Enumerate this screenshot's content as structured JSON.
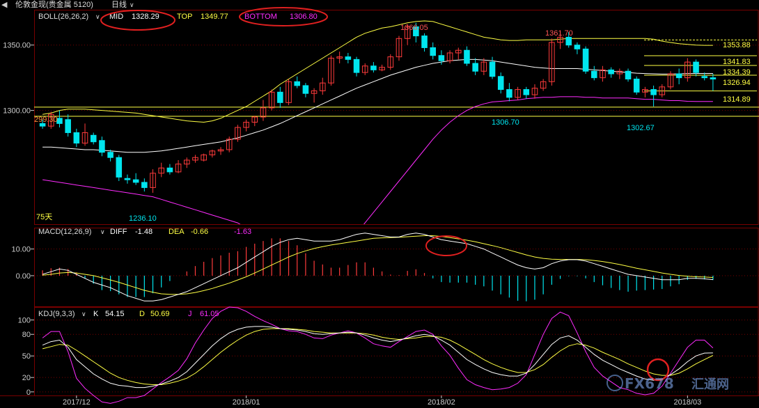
{
  "header": {
    "title": "伦敦金现(贵金属 5120)",
    "period": "日线"
  },
  "colors": {
    "bg": "#000000",
    "grid": "#7a0000",
    "up": "#ff3b3b",
    "down": "#00e5ee",
    "white": "#ffffff",
    "yellow": "#ffff44",
    "magenta": "#ff2cff",
    "axis": "#cccccc",
    "hline": "#ffff44",
    "circle": "#e02020"
  },
  "boll": {
    "label": "BOLL(26,26,2)",
    "mid_label": "MID",
    "mid": "1328.29",
    "top_label": "TOP",
    "top": "1349.77",
    "bottom_label": "BOTTOM",
    "bottom": "1306.80"
  },
  "macd": {
    "label": "MACD(12,26,9)",
    "diff_label": "DIFF",
    "diff": "-1.48",
    "dea_label": "DEA",
    "dea": "-0.66",
    "macd": "-1.63"
  },
  "kdj": {
    "label": "KDJ(9,3,3)",
    "k_label": "K",
    "k": "54.15",
    "d_label": "D",
    "d": "50.69",
    "j_label": "J",
    "j": "61.05"
  },
  "annotations": {
    "high1": "1366.05",
    "high2": "1361.70",
    "low1": "1236.10",
    "low2": "1306.70",
    "low3": "1302.67",
    "left_price": "299.30",
    "ma_days": "75天"
  },
  "levels": [
    "1353.88",
    "1341.83",
    "1334.39",
    "1326.94",
    "1314.89"
  ],
  "watermark": {
    "text": "FX678",
    "cn": "汇通网"
  },
  "chart_data": {
    "type": "candlestick",
    "x_labels": [
      "2017/12",
      "2018/01",
      "2018/02",
      "2018/03"
    ],
    "x_label_index": [
      4,
      24,
      47,
      76
    ],
    "price": {
      "ylim": [
        1213,
        1377
      ],
      "ticks": [
        1300,
        1350
      ],
      "tick_labels": [
        "1300.00",
        "1350.00"
      ],
      "horizontal_lines": [
        1302.5,
        1295.5
      ],
      "candles": [
        [
          1290,
          1293,
          1286,
          1288
        ],
        [
          1288,
          1299,
          1286,
          1297
        ],
        [
          1294,
          1300,
          1287,
          1290
        ],
        [
          1293,
          1297,
          1280,
          1283
        ],
        [
          1283,
          1286,
          1272,
          1275
        ],
        [
          1275,
          1290,
          1273,
          1283
        ],
        [
          1281,
          1283,
          1274,
          1276
        ],
        [
          1277,
          1280,
          1265,
          1268
        ],
        [
          1268,
          1270,
          1261,
          1264
        ],
        [
          1264,
          1266,
          1246,
          1249
        ],
        [
          1248,
          1251,
          1244,
          1247
        ],
        [
          1247,
          1252,
          1243,
          1245
        ],
        [
          1245,
          1248,
          1238,
          1241
        ],
        [
          1241,
          1255,
          1237,
          1252
        ],
        [
          1252,
          1260,
          1249,
          1256
        ],
        [
          1256,
          1259,
          1251,
          1253
        ],
        [
          1253,
          1262,
          1252,
          1259
        ],
        [
          1259,
          1264,
          1256,
          1262
        ],
        [
          1262,
          1266,
          1260,
          1264
        ],
        [
          1262,
          1267,
          1261,
          1266
        ],
        [
          1266,
          1270,
          1264,
          1269
        ],
        [
          1269,
          1272,
          1266,
          1270
        ],
        [
          1270,
          1280,
          1268,
          1278
        ],
        [
          1278,
          1289,
          1276,
          1287
        ],
        [
          1287,
          1293,
          1284,
          1291
        ],
        [
          1291,
          1296,
          1288,
          1295
        ],
        [
          1295,
          1308,
          1292,
          1302
        ],
        [
          1302,
          1316,
          1300,
          1314
        ],
        [
          1314,
          1318,
          1302,
          1306
        ],
        [
          1306,
          1324,
          1304,
          1322
        ],
        [
          1322,
          1326,
          1317,
          1319
        ],
        [
          1319,
          1321,
          1310,
          1313
        ],
        [
          1313,
          1317,
          1306,
          1315
        ],
        [
          1315,
          1325,
          1312,
          1321
        ],
        [
          1321,
          1342,
          1319,
          1340
        ],
        [
          1340,
          1345,
          1336,
          1341
        ],
        [
          1341,
          1344,
          1336,
          1339
        ],
        [
          1339,
          1341,
          1326,
          1329
        ],
        [
          1329,
          1336,
          1327,
          1334
        ],
        [
          1334,
          1337,
          1329,
          1331
        ],
        [
          1331,
          1335,
          1330,
          1333
        ],
        [
          1333,
          1343,
          1331,
          1341
        ],
        [
          1341,
          1357,
          1338,
          1355
        ],
        [
          1355,
          1366,
          1350,
          1364
        ],
        [
          1364,
          1367,
          1352,
          1357
        ],
        [
          1357,
          1359,
          1345,
          1348
        ],
        [
          1348,
          1352,
          1339,
          1342
        ],
        [
          1342,
          1346,
          1335,
          1338
        ],
        [
          1338,
          1346,
          1336,
          1344
        ],
        [
          1344,
          1348,
          1339,
          1346
        ],
        [
          1346,
          1349,
          1334,
          1336
        ],
        [
          1336,
          1340,
          1327,
          1330
        ],
        [
          1330,
          1340,
          1327,
          1337
        ],
        [
          1337,
          1341,
          1324,
          1326
        ],
        [
          1326,
          1329,
          1313,
          1316
        ],
        [
          1316,
          1321,
          1307,
          1310
        ],
        [
          1310,
          1318,
          1308,
          1316
        ],
        [
          1316,
          1318,
          1309,
          1312
        ],
        [
          1312,
          1320,
          1309,
          1317
        ],
        [
          1317,
          1324,
          1315,
          1322
        ],
        [
          1322,
          1355,
          1319,
          1352
        ],
        [
          1352,
          1361,
          1347,
          1356
        ],
        [
          1356,
          1360,
          1348,
          1350
        ],
        [
          1350,
          1352,
          1343,
          1347
        ],
        [
          1347,
          1349,
          1328,
          1330
        ],
        [
          1330,
          1334,
          1323,
          1325
        ],
        [
          1325,
          1334,
          1322,
          1331
        ],
        [
          1331,
          1333,
          1325,
          1328
        ],
        [
          1328,
          1332,
          1324,
          1330
        ],
        [
          1330,
          1332,
          1322,
          1324
        ],
        [
          1324,
          1326,
          1312,
          1314
        ],
        [
          1314,
          1318,
          1310,
          1316
        ],
        [
          1316,
          1319,
          1303,
          1312
        ],
        [
          1312,
          1320,
          1310,
          1318
        ],
        [
          1318,
          1330,
          1316,
          1328
        ],
        [
          1328,
          1332,
          1320,
          1325
        ],
        [
          1325,
          1340,
          1322,
          1337
        ],
        [
          1337,
          1339,
          1326,
          1329
        ],
        [
          1326,
          1329,
          1323,
          1325
        ],
        [
          1325,
          1328,
          1315,
          1324
        ]
      ],
      "mid": [
        1272,
        1272,
        1271.5,
        1271,
        1270.5,
        1270,
        1270,
        1269.5,
        1269,
        1268.5,
        1268,
        1268,
        1268,
        1268.5,
        1269,
        1270,
        1271,
        1272,
        1273,
        1274,
        1275,
        1276,
        1277.5,
        1279,
        1281,
        1283,
        1285,
        1287.5,
        1290,
        1293,
        1296,
        1299,
        1302,
        1305,
        1308,
        1311,
        1314,
        1317,
        1319.5,
        1322,
        1324.5,
        1327,
        1329,
        1331,
        1333,
        1334.5,
        1336,
        1337,
        1338,
        1338.5,
        1339,
        1339,
        1338.5,
        1338,
        1337,
        1336,
        1335,
        1334,
        1333,
        1332.5,
        1332,
        1332,
        1332,
        1332,
        1331.5,
        1331,
        1330.5,
        1330,
        1329.5,
        1329,
        1328.5,
        1328.2,
        1328,
        1327.8,
        1327.8,
        1328,
        1328.2,
        1328.3,
        1328.3,
        1328.29
      ],
      "upper": [
        1297,
        1298,
        1300,
        1301,
        1301,
        1301,
        1300.5,
        1300,
        1299.5,
        1299,
        1298.5,
        1298,
        1297,
        1296,
        1295,
        1294,
        1293,
        1292,
        1291.5,
        1291,
        1292,
        1294,
        1297,
        1300,
        1303,
        1307,
        1311,
        1315,
        1320,
        1324,
        1328,
        1332,
        1336,
        1340,
        1344,
        1348,
        1352,
        1356,
        1359,
        1361,
        1363,
        1364,
        1365.5,
        1367,
        1368,
        1368.5,
        1368,
        1366,
        1364,
        1362,
        1360,
        1358,
        1356,
        1355,
        1354,
        1353.5,
        1353.5,
        1354,
        1354,
        1354,
        1354,
        1354.5,
        1355,
        1355,
        1355,
        1355,
        1355,
        1355,
        1355,
        1355,
        1355,
        1355,
        1354.5,
        1353,
        1352,
        1351,
        1350.5,
        1350,
        1349.8,
        1349.77
      ],
      "lower": [
        1247,
        1246,
        1245,
        1244,
        1243,
        1242,
        1241,
        1240,
        1239,
        1238,
        1237,
        1236,
        1235,
        1234,
        1232,
        1230,
        1228,
        1226,
        1224,
        1222,
        1220,
        1218,
        1216,
        1214,
        1210,
        1206,
        1200,
        1194,
        1188,
        1183,
        1180,
        1179,
        1180,
        1182,
        1186,
        1192,
        1199,
        1206,
        1214,
        1222,
        1230,
        1238,
        1246,
        1254,
        1262,
        1270,
        1278,
        1285,
        1291,
        1296,
        1300,
        1303,
        1305,
        1306.5,
        1307,
        1307.5,
        1308,
        1309,
        1309.5,
        1310,
        1310,
        1310.5,
        1310.5,
        1310.5,
        1310,
        1310,
        1309.5,
        1309.5,
        1309.5,
        1309.5,
        1309,
        1308.5,
        1308.5,
        1308,
        1307.5,
        1307.5,
        1307,
        1306.8,
        1306.8,
        1306.8
      ]
    },
    "macd_panel": {
      "ylim": [
        -11.5,
        18
      ],
      "ticks": [
        0,
        10
      ],
      "tick_labels": [
        "0.00",
        "10.00"
      ],
      "diff": [
        0.5,
        1.5,
        2.5,
        2,
        0.5,
        -1,
        -2.5,
        -3.5,
        -4.5,
        -6,
        -7.5,
        -8.5,
        -9.5,
        -9.5,
        -9,
        -8,
        -7,
        -6,
        -4.5,
        -3,
        -1.5,
        0,
        1.5,
        3,
        5,
        7,
        9,
        11,
        12.5,
        13.5,
        14,
        13.5,
        13,
        13,
        13,
        13.5,
        14.5,
        15.5,
        16,
        15.5,
        15,
        14.5,
        14.5,
        15.5,
        16,
        15.5,
        14.5,
        13.5,
        13,
        12.5,
        12,
        11,
        10,
        8.5,
        7,
        5.5,
        4,
        3,
        2.5,
        3,
        4.5,
        5.5,
        6,
        6,
        5.5,
        4.5,
        3.5,
        2.5,
        1.5,
        0.5,
        0,
        -0.5,
        -1,
        -1.5,
        -1.5,
        -1.5,
        -1,
        -1,
        -1.2,
        -1.48
      ],
      "dea": [
        0.2,
        0.5,
        1,
        1.2,
        1,
        0.5,
        0,
        -0.8,
        -1.6,
        -2.5,
        -3.5,
        -4.5,
        -5.5,
        -6.2,
        -6.8,
        -7,
        -7,
        -6.8,
        -6.3,
        -5.6,
        -4.8,
        -3.8,
        -2.8,
        -1.6,
        -0.4,
        1,
        2.5,
        4,
        5.5,
        7,
        8.3,
        9.3,
        10.2,
        10.9,
        11.5,
        12,
        12.5,
        13,
        13.5,
        14,
        14.2,
        14.3,
        14.4,
        14.6,
        14.8,
        15,
        15,
        14.7,
        14.3,
        13.8,
        13.3,
        12.7,
        12,
        11.3,
        10.5,
        9.6,
        8.7,
        7.8,
        7,
        6.5,
        6.2,
        6.1,
        6.1,
        6.1,
        6,
        5.7,
        5.3,
        4.8,
        4.2,
        3.5,
        2.8,
        2.2,
        1.6,
        1,
        0.5,
        0.1,
        -0.2,
        -0.4,
        -0.5,
        -0.66
      ],
      "hist": [
        2,
        2.8,
        3,
        2.5,
        1.2,
        -1,
        -3,
        -5.4,
        -5.8,
        -7,
        -8,
        -8,
        -8,
        -6.6,
        -4.4,
        -2,
        0,
        1.6,
        3.6,
        5.2,
        6.6,
        7.6,
        8.6,
        9.2,
        10.8,
        12,
        13,
        14,
        14,
        13,
        11.4,
        8.4,
        5.6,
        4.2,
        3,
        3,
        4,
        5,
        5,
        3,
        1.6,
        0.4,
        0.2,
        1.8,
        2.4,
        1,
        -1,
        -2.4,
        -2.6,
        -2.6,
        -2.6,
        -3.4,
        -4,
        -5.6,
        -7,
        -8.2,
        -9.4,
        -9.6,
        -9,
        -7,
        -3.4,
        -1.2,
        -0.2,
        -0.2,
        -1,
        -2.4,
        -3.6,
        -4.6,
        -5.4,
        -6,
        -5.6,
        -5.4,
        -5.2,
        -5,
        -4,
        -3.2,
        -1.6,
        -1.2,
        -1.4,
        -1.63
      ]
    },
    "kdj_panel": {
      "ylim": [
        -5,
        118
      ],
      "ticks": [
        0,
        20,
        50,
        80,
        100
      ],
      "tick_labels": [
        "0",
        "20",
        "50",
        "80",
        "100"
      ],
      "k": [
        65,
        70,
        72,
        62,
        45,
        35,
        25,
        18,
        12,
        9,
        8,
        6,
        6,
        8,
        11,
        15,
        20,
        28,
        40,
        52,
        64,
        74,
        82,
        87,
        90,
        91,
        91,
        90,
        88,
        87,
        86,
        84,
        81,
        80,
        81,
        82,
        83,
        82,
        79,
        75,
        72,
        70,
        72,
        75,
        78,
        80,
        78,
        72,
        65,
        55,
        45,
        38,
        32,
        27,
        24,
        22,
        22,
        26,
        38,
        52,
        66,
        75,
        78,
        72,
        62,
        52,
        44,
        38,
        32,
        27,
        22,
        18,
        16,
        18,
        24,
        32,
        42,
        50,
        54,
        54.15
      ],
      "d": [
        60,
        63,
        66,
        65,
        58,
        50,
        42,
        34,
        26,
        20,
        16,
        13,
        11,
        10,
        10,
        12,
        15,
        19,
        26,
        35,
        45,
        55,
        64,
        72,
        79,
        84,
        87,
        88,
        88,
        88,
        87,
        86,
        84,
        83,
        82,
        82,
        82,
        82,
        81,
        79,
        76,
        74,
        73,
        74,
        75,
        77,
        77,
        76,
        72,
        66,
        59,
        52,
        45,
        39,
        34,
        30,
        27,
        27,
        31,
        38,
        48,
        57,
        64,
        67,
        65,
        61,
        55,
        50,
        45,
        39,
        34,
        29,
        25,
        23,
        23,
        26,
        32,
        39,
        45,
        50.69
      ],
      "j": [
        75,
        84,
        84,
        56,
        19,
        5,
        -5,
        -14,
        -16,
        -13,
        -8,
        -8,
        -5,
        4,
        13,
        21,
        30,
        46,
        68,
        86,
        102,
        112,
        118,
        117,
        112,
        105,
        99,
        94,
        88,
        85,
        84,
        80,
        75,
        74,
        79,
        82,
        85,
        82,
        75,
        67,
        64,
        62,
        70,
        77,
        84,
        86,
        80,
        64,
        51,
        33,
        17,
        10,
        6,
        3,
        4,
        6,
        12,
        24,
        52,
        80,
        102,
        111,
        106,
        82,
        56,
        34,
        22,
        14,
        6,
        3,
        -2,
        -4,
        -2,
        8,
        26,
        44,
        62,
        72,
        72,
        61.05
      ]
    }
  }
}
